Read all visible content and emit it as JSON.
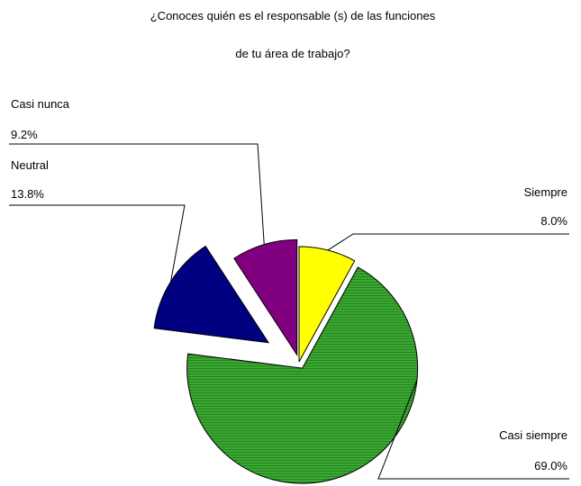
{
  "chart_data": {
    "type": "pie",
    "title_lines": [
      "¿Conoces quién es el responsable (s) de las funciones",
      "de tu área de trabajo?"
    ],
    "slices": [
      {
        "label": "Siempre",
        "value_label": "8.0%",
        "value": 8.0,
        "color": "#ffff00"
      },
      {
        "label": "Casi siempre",
        "value_label": "69.0%",
        "value": 69.0,
        "color": "#33a02c"
      },
      {
        "label": "Neutral",
        "value_label": "13.8%",
        "value": 13.8,
        "color": "#000080"
      },
      {
        "label": "Casi nunca",
        "value_label": "9.2%",
        "value": 9.2,
        "color": "#800080"
      }
    ],
    "legend": "none",
    "grid": false
  }
}
